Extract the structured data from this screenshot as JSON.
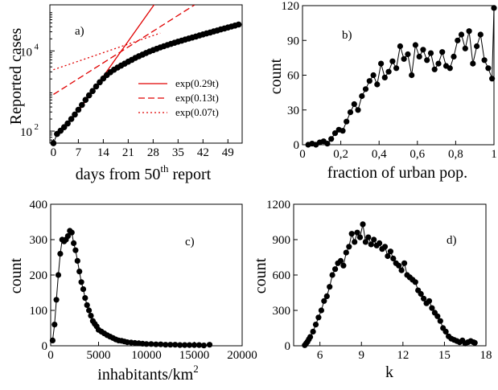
{
  "chart_data": [
    {
      "type": "scatter",
      "panel_label": "a)",
      "xlabel": "days from 50th report",
      "xlabel_parts": [
        "days from 50",
        "th",
        " report"
      ],
      "ylabel": "Reported cases",
      "xlim": [
        -1,
        53
      ],
      "ylim_log10": [
        1.7,
        5.15
      ],
      "y_scale": "log",
      "x_ticks": [
        0,
        7,
        14,
        21,
        28,
        35,
        42,
        49
      ],
      "y_ticks": [
        {
          "base": "10",
          "exp": "2",
          "value": 100
        },
        {
          "base": "10",
          "exp": "4",
          "value": 10000
        }
      ],
      "series": [
        {
          "name": "",
          "style": "markers-line",
          "color": "#000000",
          "x": [
            0,
            1,
            2,
            3,
            4,
            5,
            6,
            7,
            8,
            9,
            10,
            11,
            12,
            13,
            14,
            15,
            16,
            17,
            18,
            19,
            20,
            21,
            22,
            23,
            24,
            25,
            26,
            27,
            28,
            29,
            30,
            31,
            32,
            33,
            34,
            35,
            36,
            37,
            38,
            39,
            40,
            41,
            42,
            43,
            44,
            45,
            46,
            47,
            48,
            49,
            50,
            51,
            52
          ],
          "y": [
            50,
            85,
            102,
            125,
            155,
            200,
            260,
            340,
            450,
            600,
            780,
            1000,
            1300,
            1650,
            2050,
            2500,
            2950,
            3400,
            3850,
            4300,
            4800,
            5400,
            6000,
            6700,
            7400,
            8100,
            8900,
            9700,
            10500,
            11300,
            12200,
            13100,
            14000,
            15000,
            16000,
            17000,
            18000,
            19200,
            20400,
            21600,
            22900,
            24300,
            25800,
            27300,
            28900,
            30600,
            32400,
            34300,
            36300,
            38400,
            40600,
            43000,
            45500
          ]
        }
      ],
      "fits": [
        {
          "name": "exp(0.29t)",
          "style": "solid",
          "color": "#e00000",
          "x": [
            7,
            28.6
          ],
          "y": [
            310,
            156000
          ]
        },
        {
          "name": "exp(0.13t)",
          "style": "dashed",
          "color": "#e00000",
          "x": [
            0,
            39.6
          ],
          "y": [
            820,
            140000
          ]
        },
        {
          "name": "exp(0.07t)",
          "style": "dotted",
          "color": "#e00000",
          "x": [
            0,
            30
          ],
          "y": [
            3400,
            27800
          ]
        }
      ],
      "legend_placement": "center-right"
    },
    {
      "type": "line",
      "panel_label": "b)",
      "xlabel": "fraction of urban pop.",
      "ylabel": "count",
      "xlim": [
        0,
        1
      ],
      "ylim": [
        0,
        120
      ],
      "x_ticks": [
        {
          "value": 0,
          "label": "0"
        },
        {
          "value": 0.2,
          "label": "0,2"
        },
        {
          "value": 0.4,
          "label": "0,4"
        },
        {
          "value": 0.6,
          "label": "0,6"
        },
        {
          "value": 0.8,
          "label": "0,8"
        },
        {
          "value": 1,
          "label": "1"
        }
      ],
      "y_ticks": [
        0,
        30,
        60,
        90,
        120
      ],
      "series": [
        {
          "name": "",
          "color": "#000000",
          "x": [
            0.03,
            0.05,
            0.07,
            0.09,
            0.11,
            0.13,
            0.15,
            0.17,
            0.19,
            0.21,
            0.23,
            0.25,
            0.27,
            0.29,
            0.31,
            0.33,
            0.35,
            0.37,
            0.39,
            0.41,
            0.43,
            0.45,
            0.47,
            0.49,
            0.51,
            0.53,
            0.55,
            0.57,
            0.59,
            0.61,
            0.63,
            0.65,
            0.67,
            0.69,
            0.71,
            0.73,
            0.75,
            0.77,
            0.79,
            0.81,
            0.83,
            0.85,
            0.87,
            0.89,
            0.91,
            0.93,
            0.95,
            0.97,
            0.99,
            1.0
          ],
          "y": [
            0,
            1,
            0,
            2,
            3,
            1,
            5,
            10,
            13,
            12,
            20,
            28,
            35,
            30,
            42,
            48,
            55,
            60,
            52,
            70,
            58,
            63,
            72,
            66,
            85,
            74,
            78,
            60,
            86,
            76,
            82,
            73,
            79,
            65,
            70,
            80,
            68,
            66,
            76,
            90,
            95,
            83,
            98,
            70,
            85,
            95,
            73,
            66,
            57,
            118
          ]
        }
      ]
    },
    {
      "type": "line",
      "panel_label": "c)",
      "xlabel": "inhabitants/km2",
      "xlabel_parts": [
        "inhabitants/km",
        "2"
      ],
      "ylabel": "count",
      "xlim": [
        0,
        20000
      ],
      "ylim": [
        0,
        400
      ],
      "x_ticks": [
        0,
        5000,
        10000,
        15000,
        20000
      ],
      "y_ticks": [
        0,
        100,
        200,
        300,
        400
      ],
      "series": [
        {
          "name": "",
          "color": "#000000",
          "x": [
            200,
            400,
            600,
            800,
            1000,
            1200,
            1400,
            1600,
            1800,
            2000,
            2200,
            2400,
            2600,
            2800,
            3000,
            3200,
            3400,
            3600,
            3800,
            4000,
            4200,
            4400,
            4600,
            4800,
            5000,
            5300,
            5600,
            5900,
            6200,
            6500,
            6800,
            7100,
            7400,
            7700,
            8000,
            8400,
            8800,
            9200,
            9600,
            10000,
            10500,
            11000,
            11500,
            12000,
            12500,
            13000,
            13500,
            14000,
            14500,
            15000,
            15500,
            16000,
            16600
          ],
          "y": [
            15,
            60,
            130,
            200,
            260,
            300,
            295,
            300,
            310,
            325,
            320,
            290,
            270,
            240,
            210,
            180,
            160,
            135,
            115,
            100,
            85,
            70,
            62,
            55,
            45,
            40,
            35,
            30,
            26,
            22,
            18,
            15,
            14,
            12,
            10,
            9,
            8,
            7,
            6,
            5,
            5,
            4,
            4,
            3,
            3,
            3,
            2,
            2,
            2,
            2,
            2,
            1,
            3
          ]
        }
      ]
    },
    {
      "type": "line",
      "panel_label": "d)",
      "xlabel": "k",
      "ylabel": "count",
      "xlim": [
        4.1,
        18
      ],
      "ylim": [
        0,
        1200
      ],
      "x_ticks": [
        6,
        9,
        12,
        15,
        18
      ],
      "y_ticks": [
        0,
        300,
        600,
        900,
        1200
      ],
      "series": [
        {
          "name": "",
          "color": "#000000",
          "x": [
            4.9,
            5.0,
            5.1,
            5.2,
            5.3,
            5.5,
            5.7,
            5.9,
            6.1,
            6.3,
            6.5,
            6.7,
            6.9,
            7.1,
            7.3,
            7.5,
            7.7,
            7.9,
            8.1,
            8.3,
            8.5,
            8.7,
            8.9,
            9.1,
            9.3,
            9.5,
            9.7,
            9.9,
            10.1,
            10.3,
            10.5,
            10.7,
            10.9,
            11.1,
            11.3,
            11.5,
            11.7,
            11.9,
            12.1,
            12.3,
            12.5,
            12.7,
            12.9,
            13.1,
            13.3,
            13.5,
            13.7,
            13.9,
            14.1,
            14.3,
            14.5,
            14.7,
            14.9,
            15.1,
            15.3,
            15.5,
            15.7,
            15.9,
            16.1,
            16.3,
            16.5,
            16.7,
            16.9,
            17.1,
            17.2
          ],
          "y": [
            5,
            20,
            35,
            55,
            75,
            120,
            180,
            240,
            300,
            380,
            420,
            500,
            600,
            650,
            700,
            720,
            680,
            790,
            840,
            950,
            880,
            960,
            920,
            1030,
            880,
            920,
            860,
            900,
            850,
            870,
            820,
            840,
            760,
            800,
            740,
            700,
            680,
            640,
            700,
            600,
            580,
            560,
            540,
            470,
            440,
            400,
            360,
            380,
            320,
            280,
            250,
            210,
            150,
            120,
            80,
            60,
            50,
            40,
            30,
            45,
            20,
            30,
            40,
            30,
            25
          ]
        }
      ]
    }
  ]
}
